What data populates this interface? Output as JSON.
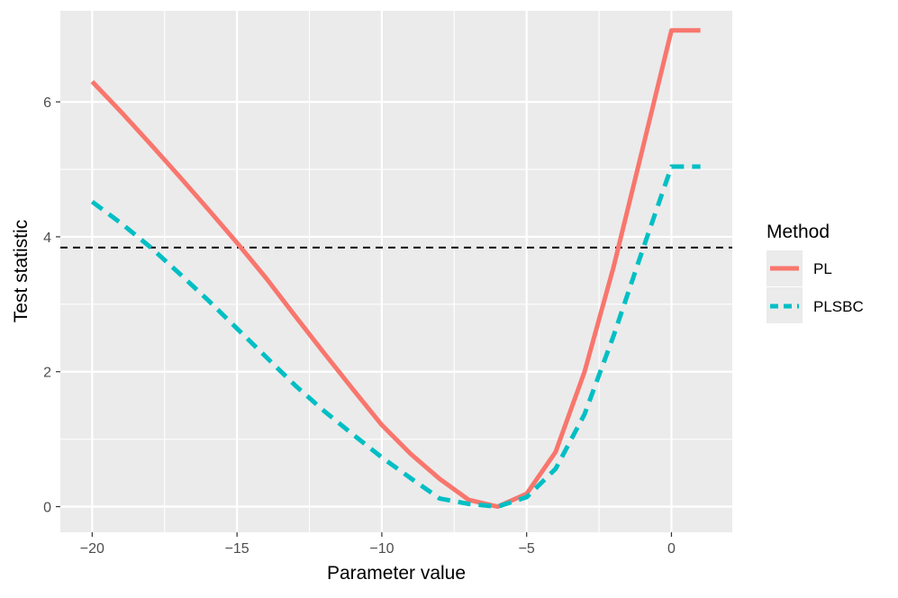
{
  "chart_data": {
    "type": "line",
    "xlabel": "Parameter value",
    "ylabel": "Test statistic",
    "xlim": [
      -21.1,
      2.1
    ],
    "ylim": [
      -0.38,
      7.35
    ],
    "x_ticks": [
      -20,
      -15,
      -10,
      -5,
      0
    ],
    "x_tick_labels": [
      "−20",
      "−15",
      "−10",
      "−5",
      "0"
    ],
    "y_ticks": [
      0,
      2,
      4,
      6
    ],
    "y_tick_labels": [
      "0",
      "2",
      "4",
      "6"
    ],
    "grid": true,
    "legend": {
      "title": "Method",
      "position": "right"
    },
    "reference_line": {
      "y": 3.84,
      "style": "dashed",
      "color": "#000000"
    },
    "series": [
      {
        "name": "PL",
        "color": "#F8766D",
        "linestyle": "solid",
        "x": [
          -20,
          -19,
          -18,
          -17,
          -16,
          -15,
          -14,
          -13,
          -12,
          -11,
          -10,
          -9,
          -8,
          -7,
          -6,
          -5,
          -4,
          -3,
          -2,
          -1,
          0,
          1
        ],
        "y": [
          6.3,
          5.85,
          5.38,
          4.9,
          4.41,
          3.91,
          3.39,
          2.83,
          2.28,
          1.74,
          1.21,
          0.78,
          0.41,
          0.1,
          0.0,
          0.19,
          0.81,
          2.0,
          3.55,
          5.3,
          7.06,
          7.06
        ]
      },
      {
        "name": "PLSBC",
        "color": "#00BFC4",
        "linestyle": "dashed",
        "x": [
          -20,
          -19,
          -18,
          -17,
          -16,
          -15,
          -14,
          -13,
          -12,
          -11,
          -10,
          -9,
          -8,
          -7,
          -6,
          -5,
          -4,
          -3,
          -2,
          -1,
          0,
          1
        ],
        "y": [
          4.52,
          4.2,
          3.85,
          3.46,
          3.06,
          2.64,
          2.22,
          1.8,
          1.42,
          1.07,
          0.73,
          0.42,
          0.12,
          0.04,
          0.0,
          0.14,
          0.56,
          1.37,
          2.53,
          3.8,
          5.04,
          5.04
        ]
      }
    ]
  }
}
